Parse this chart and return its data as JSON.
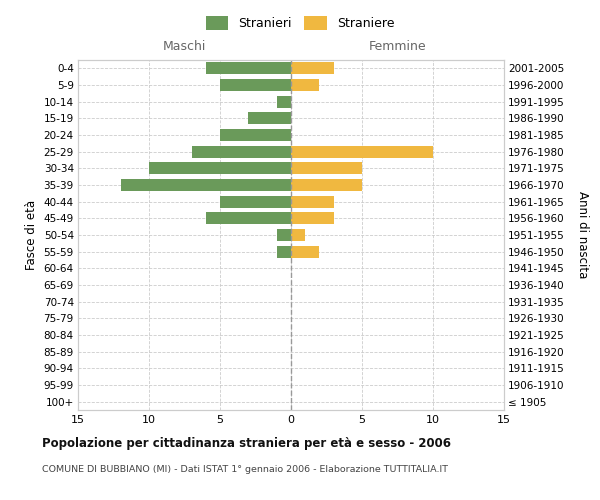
{
  "age_groups": [
    "100+",
    "95-99",
    "90-94",
    "85-89",
    "80-84",
    "75-79",
    "70-74",
    "65-69",
    "60-64",
    "55-59",
    "50-54",
    "45-49",
    "40-44",
    "35-39",
    "30-34",
    "25-29",
    "20-24",
    "15-19",
    "10-14",
    "5-9",
    "0-4"
  ],
  "birth_years": [
    "≤ 1905",
    "1906-1910",
    "1911-1915",
    "1916-1920",
    "1921-1925",
    "1926-1930",
    "1931-1935",
    "1936-1940",
    "1941-1945",
    "1946-1950",
    "1951-1955",
    "1956-1960",
    "1961-1965",
    "1966-1970",
    "1971-1975",
    "1976-1980",
    "1981-1985",
    "1986-1990",
    "1991-1995",
    "1996-2000",
    "2001-2005"
  ],
  "males": [
    0,
    0,
    0,
    0,
    0,
    0,
    0,
    0,
    0,
    1,
    1,
    6,
    5,
    12,
    10,
    7,
    5,
    3,
    1,
    5,
    6
  ],
  "females": [
    0,
    0,
    0,
    0,
    0,
    0,
    0,
    0,
    0,
    2,
    1,
    3,
    3,
    5,
    5,
    10,
    0,
    0,
    0,
    2,
    3
  ],
  "male_color": "#6a9a5a",
  "female_color": "#f0b840",
  "title": "Popolazione per cittadinanza straniera per età e sesso - 2006",
  "subtitle": "COMUNE DI BUBBIANO (MI) - Dati ISTAT 1° gennaio 2006 - Elaborazione TUTTITALIA.IT",
  "xlabel_left": "Maschi",
  "xlabel_right": "Femmine",
  "ylabel_left": "Fasce di età",
  "ylabel_right": "Anni di nascita",
  "legend_male": "Stranieri",
  "legend_female": "Straniere",
  "xlim": 15,
  "background_color": "#ffffff",
  "grid_color": "#cccccc"
}
